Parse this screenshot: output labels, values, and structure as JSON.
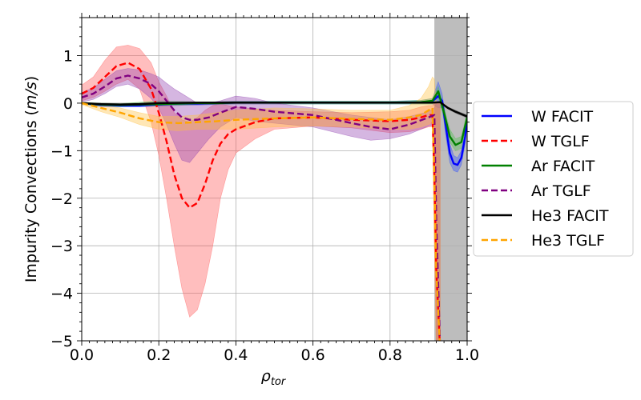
{
  "chart_data": {
    "type": "line",
    "title": "",
    "xlabel": "ρ_tor",
    "xlabel_main": "ρ",
    "xlabel_sub": "tor",
    "ylabel": "Impurity Convections (m/s)",
    "ylabel_prefix": "Impurity Convections (",
    "ylabel_unit": "m/s",
    "ylabel_suffix": ")",
    "xlim": [
      0.0,
      1.0
    ],
    "ylim": [
      -5,
      1.8
    ],
    "xticks": [
      0.0,
      0.2,
      0.4,
      0.6,
      0.8,
      1.0
    ],
    "xtick_labels": [
      "0.0",
      "0.2",
      "0.4",
      "0.6",
      "0.8",
      "1.0"
    ],
    "yticks": [
      -5,
      -4,
      -3,
      -2,
      -1,
      0,
      1
    ],
    "ytick_labels": [
      "−5",
      "−4",
      "−3",
      "−2",
      "−1",
      "0",
      "1"
    ],
    "grid": true,
    "legend_position": "outside-right",
    "shaded_region": {
      "x_start": 0.915,
      "x_end": 1.0,
      "color": "#bdbdbd"
    },
    "series": [
      {
        "name": "W FACIT",
        "color": "#0000ff",
        "style": "solid",
        "x": [
          0,
          0.05,
          0.1,
          0.15,
          0.2,
          0.25,
          0.3,
          0.35,
          0.4,
          0.5,
          0.6,
          0.7,
          0.8,
          0.88,
          0.91,
          0.925,
          0.935,
          0.945,
          0.955,
          0.965,
          0.975,
          0.985,
          0.995,
          1.0
        ],
        "y": [
          0,
          -0.04,
          -0.05,
          -0.05,
          -0.03,
          -0.01,
          -0.01,
          0,
          0.01,
          0.01,
          0.01,
          0.01,
          0.01,
          0.02,
          0.04,
          0.15,
          0.05,
          -0.5,
          -1.05,
          -1.27,
          -1.3,
          -1.15,
          -0.7,
          -0.3
        ],
        "band_upper": [
          0.02,
          -0.01,
          -0.02,
          -0.02,
          0,
          0.02,
          0.02,
          0.03,
          0.04,
          0.04,
          0.04,
          0.04,
          0.04,
          0.06,
          0.1,
          0.45,
          0.2,
          -0.3,
          -0.85,
          -1.1,
          -1.15,
          -1.0,
          -0.55,
          -0.2
        ],
        "band_lower": [
          -0.02,
          -0.07,
          -0.08,
          -0.08,
          -0.06,
          -0.04,
          -0.04,
          -0.03,
          -0.02,
          -0.02,
          -0.02,
          -0.02,
          -0.02,
          -0.02,
          -0.02,
          -0.1,
          -0.1,
          -0.7,
          -1.25,
          -1.42,
          -1.45,
          -1.3,
          -0.85,
          -0.4
        ],
        "band_color": "#3050ff"
      },
      {
        "name": "W TGLF",
        "color": "#ff0000",
        "style": "dashed",
        "x": [
          0,
          0.03,
          0.06,
          0.09,
          0.12,
          0.15,
          0.18,
          0.2,
          0.22,
          0.24,
          0.26,
          0.28,
          0.3,
          0.32,
          0.34,
          0.36,
          0.38,
          0.4,
          0.45,
          0.5,
          0.6,
          0.7,
          0.8,
          0.85,
          0.88,
          0.9,
          0.91,
          0.915,
          0.92,
          0.93
        ],
        "y": [
          0.2,
          0.32,
          0.55,
          0.78,
          0.85,
          0.72,
          0.3,
          -0.2,
          -0.8,
          -1.5,
          -2.0,
          -2.2,
          -2.1,
          -1.7,
          -1.2,
          -0.85,
          -0.65,
          -0.55,
          -0.4,
          -0.32,
          -0.3,
          -0.35,
          -0.38,
          -0.35,
          -0.3,
          -0.25,
          -0.25,
          -1.5,
          -3.5,
          -5.2
        ],
        "band_upper": [
          0.38,
          0.55,
          0.9,
          1.18,
          1.22,
          1.15,
          0.85,
          0.45,
          0.15,
          -0.2,
          -0.35,
          -0.4,
          -0.3,
          -0.15,
          -0.05,
          -0.02,
          -0.05,
          -0.08,
          -0.12,
          -0.15,
          -0.18,
          -0.2,
          -0.18,
          -0.15,
          -0.08,
          -0.05,
          -0.05,
          0,
          0,
          0
        ],
        "band_lower": [
          0.05,
          0.12,
          0.25,
          0.4,
          0.5,
          0.3,
          -0.4,
          -1.1,
          -2.0,
          -3.0,
          -3.9,
          -4.5,
          -4.35,
          -3.8,
          -3.0,
          -2.0,
          -1.4,
          -1.05,
          -0.75,
          -0.55,
          -0.48,
          -0.52,
          -0.62,
          -0.6,
          -0.55,
          -0.5,
          -0.5,
          -3.0,
          -5.2,
          -5.2
        ],
        "band_color": "#ff5555"
      },
      {
        "name": "Ar FACIT",
        "color": "#008000",
        "style": "solid",
        "x": [
          0,
          0.05,
          0.1,
          0.15,
          0.2,
          0.25,
          0.3,
          0.35,
          0.4,
          0.5,
          0.6,
          0.7,
          0.8,
          0.88,
          0.91,
          0.925,
          0.94,
          0.955,
          0.97,
          0.985,
          1.0
        ],
        "y": [
          0,
          -0.03,
          -0.04,
          -0.03,
          -0.02,
          -0.01,
          0,
          0,
          0.01,
          0.01,
          0.01,
          0.01,
          0.01,
          0.02,
          0.05,
          0.25,
          -0.2,
          -0.7,
          -0.88,
          -0.82,
          -0.3
        ],
        "band_upper": [
          0.02,
          0,
          -0.01,
          0.02,
          0.05,
          0.04,
          0.03,
          0.03,
          0.04,
          0.04,
          0.04,
          0.04,
          0.04,
          0.06,
          0.1,
          0.35,
          -0.1,
          -0.55,
          -0.75,
          -0.7,
          -0.2
        ],
        "band_lower": [
          -0.02,
          -0.06,
          -0.07,
          -0.06,
          -0.06,
          -0.05,
          -0.03,
          -0.03,
          -0.02,
          -0.02,
          -0.02,
          -0.02,
          -0.02,
          -0.02,
          -0.02,
          0.12,
          -0.3,
          -0.82,
          -1.0,
          -0.95,
          -0.4
        ],
        "band_color": "#50c050"
      },
      {
        "name": "Ar TGLF",
        "color": "#800080",
        "style": "dashed",
        "x": [
          0,
          0.03,
          0.06,
          0.09,
          0.12,
          0.15,
          0.18,
          0.2,
          0.22,
          0.24,
          0.26,
          0.28,
          0.3,
          0.33,
          0.36,
          0.4,
          0.45,
          0.5,
          0.6,
          0.7,
          0.75,
          0.8,
          0.85,
          0.9,
          0.915,
          0.92,
          0.93
        ],
        "y": [
          0.12,
          0.2,
          0.35,
          0.52,
          0.58,
          0.52,
          0.4,
          0.25,
          0.05,
          -0.15,
          -0.3,
          -0.35,
          -0.35,
          -0.3,
          -0.2,
          -0.08,
          -0.12,
          -0.18,
          -0.25,
          -0.42,
          -0.5,
          -0.55,
          -0.45,
          -0.3,
          -0.25,
          -2.5,
          -5.2
        ],
        "band_upper": [
          0.22,
          0.32,
          0.5,
          0.68,
          0.73,
          0.7,
          0.62,
          0.55,
          0.42,
          0.3,
          0.2,
          0.1,
          0.0,
          0.0,
          0.05,
          0.15,
          0.1,
          0.0,
          -0.1,
          -0.25,
          -0.3,
          -0.35,
          -0.28,
          -0.18,
          -0.1,
          0,
          0
        ],
        "band_lower": [
          0.02,
          0.08,
          0.2,
          0.35,
          0.4,
          0.3,
          0.1,
          -0.1,
          -0.45,
          -0.85,
          -1.2,
          -1.25,
          -1.05,
          -0.75,
          -0.5,
          -0.3,
          -0.38,
          -0.42,
          -0.5,
          -0.7,
          -0.78,
          -0.75,
          -0.65,
          -0.48,
          -0.45,
          -5.2,
          -5.2
        ],
        "band_color": "#9040b0"
      },
      {
        "name": "He3 FACIT",
        "color": "#000000",
        "style": "solid",
        "x": [
          0,
          0.05,
          0.1,
          0.15,
          0.2,
          0.3,
          0.4,
          0.5,
          0.6,
          0.7,
          0.8,
          0.88,
          0.91,
          0.93,
          0.95,
          0.97,
          1.0
        ],
        "y": [
          0,
          -0.02,
          -0.03,
          -0.02,
          0,
          0.01,
          0.01,
          0.01,
          0.01,
          0.01,
          0.01,
          0.01,
          0.01,
          0.02,
          -0.1,
          -0.18,
          -0.28
        ],
        "band_upper": [
          0.01,
          0,
          -0.01,
          0,
          0.02,
          0.02,
          0.02,
          0.02,
          0.02,
          0.02,
          0.02,
          0.02,
          0.02,
          0.04,
          -0.08,
          -0.15,
          -0.25
        ],
        "band_lower": [
          -0.01,
          -0.04,
          -0.05,
          -0.04,
          -0.02,
          0,
          0,
          0,
          0,
          0,
          0,
          0,
          0,
          0,
          -0.12,
          -0.21,
          -0.31
        ],
        "band_color": "#555555"
      },
      {
        "name": "He3 TGLF",
        "color": "#ffa500",
        "style": "dashed",
        "x": [
          0,
          0.05,
          0.1,
          0.15,
          0.2,
          0.25,
          0.3,
          0.35,
          0.4,
          0.5,
          0.6,
          0.7,
          0.8,
          0.85,
          0.88,
          0.9,
          0.91,
          0.915,
          0.92,
          0.93
        ],
        "y": [
          0,
          -0.1,
          -0.2,
          -0.32,
          -0.4,
          -0.42,
          -0.4,
          -0.38,
          -0.35,
          -0.32,
          -0.3,
          -0.33,
          -0.35,
          -0.3,
          -0.25,
          -0.15,
          -0.1,
          -1.5,
          -3.5,
          -5.2
        ],
        "band_upper": [
          0.03,
          -0.04,
          -0.1,
          -0.2,
          -0.28,
          -0.28,
          -0.25,
          -0.2,
          -0.15,
          -0.1,
          -0.12,
          -0.15,
          -0.15,
          -0.05,
          0.1,
          0.35,
          0.55,
          0.5,
          0,
          0
        ],
        "band_lower": [
          -0.03,
          -0.18,
          -0.3,
          -0.45,
          -0.55,
          -0.58,
          -0.55,
          -0.55,
          -0.55,
          -0.5,
          -0.48,
          -0.5,
          -0.55,
          -0.55,
          -0.5,
          -0.45,
          -0.4,
          -3.0,
          -5.2,
          -5.2
        ],
        "band_color": "#ffc040"
      }
    ]
  }
}
